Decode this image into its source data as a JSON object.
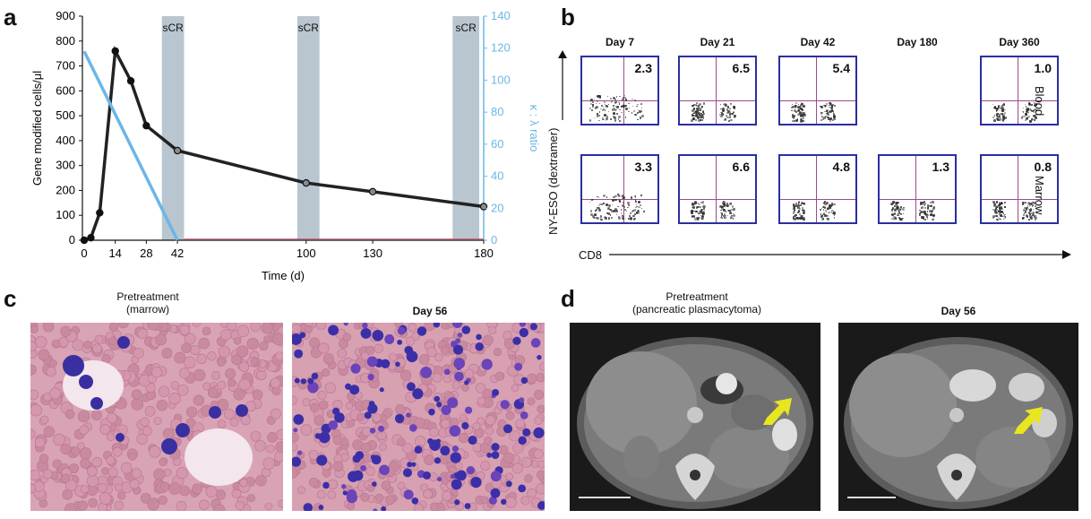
{
  "panels": {
    "a": {
      "letter": "a",
      "chart_data": {
        "type": "line",
        "xlabel": "Time (d)",
        "ylabel": "Gene modified cells/μl",
        "y2label": "κ : λ ratio",
        "xticks": [
          0,
          14,
          28,
          42,
          100,
          130,
          180
        ],
        "yticks": [
          0,
          100,
          200,
          300,
          400,
          500,
          600,
          700,
          800,
          900
        ],
        "y2ticks": [
          0,
          20,
          40,
          60,
          80,
          100,
          120,
          140
        ],
        "ylim": [
          0,
          900
        ],
        "y2lim": [
          0,
          140
        ],
        "xlim": [
          0,
          180
        ],
        "shaded_label": "sCR",
        "shaded_regions": [
          [
            35,
            45
          ],
          [
            96,
            106
          ],
          [
            166,
            178
          ]
        ],
        "series": [
          {
            "axis": "left",
            "color": "#222222",
            "x": [
              0,
              3,
              7,
              14,
              21,
              28,
              42,
              100,
              130,
              180
            ],
            "y": [
              0,
              10,
              110,
              760,
              640,
              460,
              360,
              230,
              195,
              135
            ]
          },
          {
            "axis": "right",
            "color": "#6cb6e6",
            "x": [
              0,
              42
            ],
            "y": [
              118,
              0
            ]
          }
        ]
      }
    },
    "b": {
      "letter": "b",
      "days": [
        "Day 7",
        "Day 21",
        "Day 42",
        "Day 180",
        "Day 360"
      ],
      "row_labels": [
        "Blood",
        "Marrow"
      ],
      "y_axis": "NY-ESO (dextramer)",
      "x_axis": "CD8",
      "blood_values": [
        "2.3",
        "6.5",
        "5.4",
        "",
        "1.0"
      ],
      "marrow_values": [
        "3.3",
        "6.6",
        "4.8",
        "1.3",
        "0.8"
      ]
    },
    "c": {
      "letter": "c",
      "left_title": "Pretreatment\n(marrow)",
      "right_title": "Day 56"
    },
    "d": {
      "letter": "d",
      "left_title": "Pretreatment\n(pancreatic plasmacytoma)",
      "right_title": "Day 56"
    }
  },
  "colors": {
    "line_black": "#222222",
    "line_blue": "#6cb6e6",
    "shade": "#b9c6cf",
    "flow_border": "#2a2fa0",
    "gate": "#9a4c8c",
    "arrow": "#e8e61e"
  }
}
